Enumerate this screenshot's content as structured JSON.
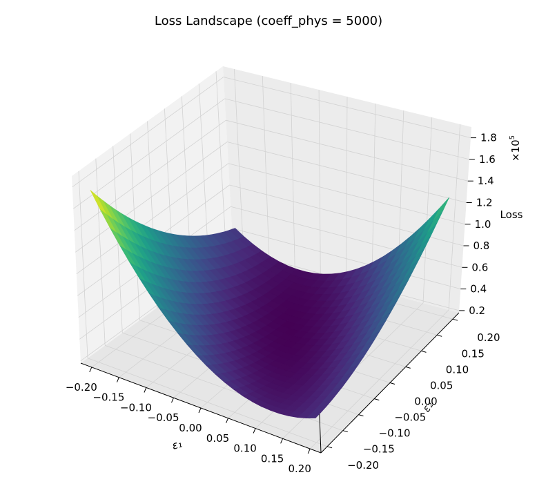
{
  "chart_data": {
    "type": "surface3d",
    "title": "Loss Landscape (coeff_phys = 5000)",
    "xlabel": "ε₁",
    "ylabel": "ε₂",
    "zlabel": "Loss",
    "z_multiplier": "×10",
    "z_exponent": "5",
    "colormap": "viridis",
    "grid": true,
    "xlim": [
      -0.22,
      0.22
    ],
    "ylim": [
      -0.22,
      0.22
    ],
    "zlim": [
      0.18,
      1.9
    ],
    "x_ticks": [
      -0.2,
      -0.15,
      -0.1,
      -0.05,
      0.0,
      0.05,
      0.1,
      0.15,
      0.2
    ],
    "x_tick_labels": [
      "−0.20",
      "−0.15",
      "−0.10",
      "−0.05",
      "0.00",
      "0.05",
      "0.10",
      "0.15",
      "0.20"
    ],
    "y_ticks": [
      -0.2,
      -0.15,
      -0.1,
      -0.05,
      0.0,
      0.05,
      0.1,
      0.15,
      0.2
    ],
    "y_tick_labels": [
      "−0.20",
      "−0.15",
      "−0.10",
      "−0.05",
      "0.00",
      "0.05",
      "0.10",
      "0.15",
      "0.20"
    ],
    "z_ticks": [
      0.2,
      0.4,
      0.6,
      0.8,
      1.0,
      1.2,
      1.4,
      1.6,
      1.8
    ],
    "z_tick_labels": [
      "0.2",
      "0.4",
      "0.6",
      "0.8",
      "1.0",
      "1.2",
      "1.4",
      "1.6",
      "1.8"
    ],
    "x_range": [
      -0.2,
      0.2
    ],
    "y_range": [
      -0.2,
      0.2
    ],
    "grid_size": 24,
    "corner_values": {
      "x_min_y_min": 0.97,
      "x_min_y_max": 1.86,
      "x_max_y_min": 0.97,
      "x_max_y_max": 0.78
    },
    "minimum": {
      "x": 0.0,
      "y": 0.05,
      "loss": 0.2
    }
  }
}
